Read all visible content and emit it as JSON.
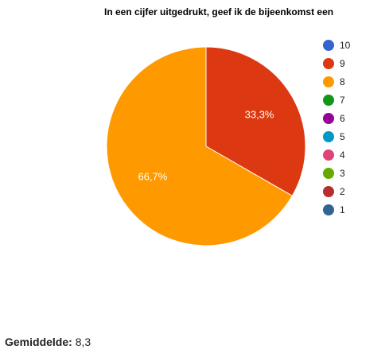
{
  "chart_data": {
    "type": "pie",
    "title": "In een cijfer uitgedrukt, geef ik de bijeenkomst een",
    "slices": [
      {
        "label": "9",
        "value": 33.3,
        "display": "33,3%",
        "color": "#dc3912"
      },
      {
        "label": "8",
        "value": 66.7,
        "display": "66,7%",
        "color": "#ff9900"
      }
    ],
    "legend": [
      {
        "label": "10",
        "color": "#3366cc"
      },
      {
        "label": "9",
        "color": "#dc3912"
      },
      {
        "label": "8",
        "color": "#ff9900"
      },
      {
        "label": "7",
        "color": "#109618"
      },
      {
        "label": "6",
        "color": "#990099"
      },
      {
        "label": "5",
        "color": "#0099c6"
      },
      {
        "label": "4",
        "color": "#dd4477"
      },
      {
        "label": "3",
        "color": "#66aa00"
      },
      {
        "label": "2",
        "color": "#b82e2e"
      },
      {
        "label": "1",
        "color": "#316395"
      }
    ],
    "legend_position": "right"
  },
  "footer": {
    "label": "Gemiddelde:",
    "value": "8,3"
  }
}
